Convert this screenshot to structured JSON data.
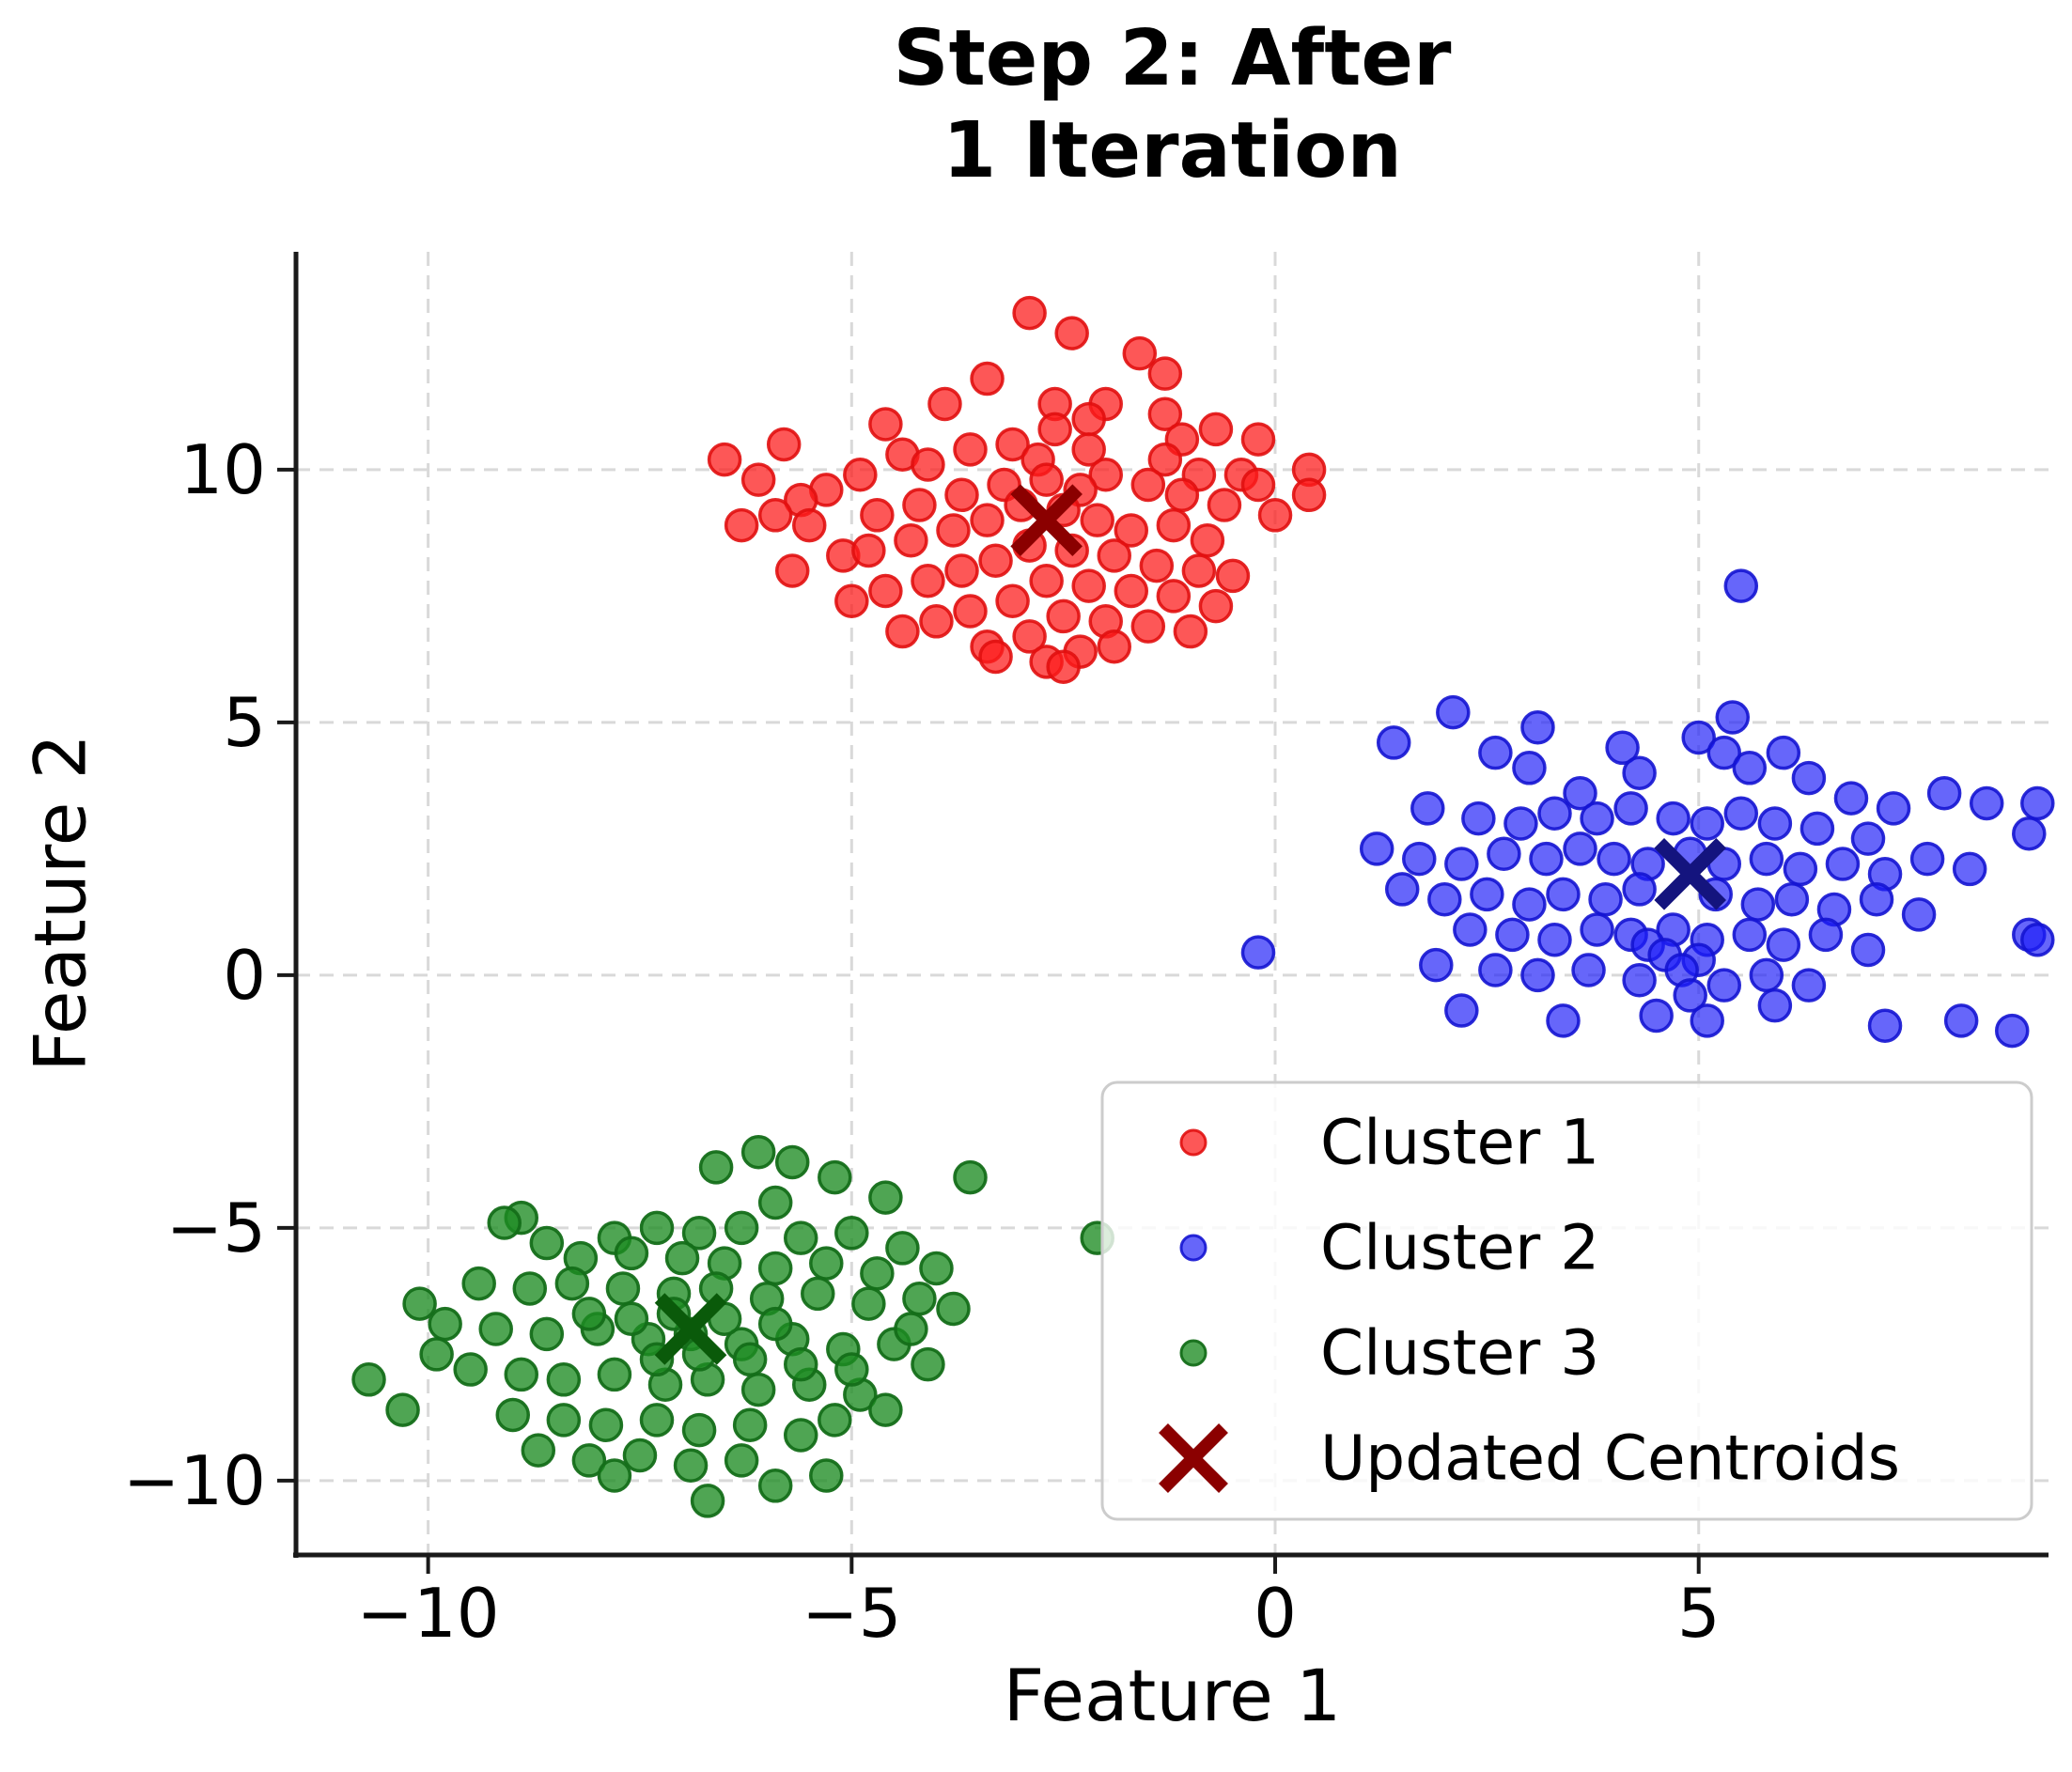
{
  "chart_data": {
    "type": "scatter",
    "title": "Step 2: After\n1 Iteration",
    "xlabel": "Feature 1",
    "ylabel": "Feature 2",
    "xlim": [
      -11.56,
      9.13
    ],
    "ylim": [
      -11.47,
      14.31
    ],
    "xticks": [
      -10,
      -5,
      0,
      5
    ],
    "xtick_labels": [
      "−10",
      "−5",
      "0",
      "5"
    ],
    "yticks": [
      10,
      5,
      0,
      -5,
      -10
    ],
    "ytick_labels": [
      "10",
      "5",
      "0",
      "−5",
      "−10"
    ],
    "grid": true,
    "grid_color": "#D9D9D9",
    "spine_color": "#1a1a1a",
    "legend_position": "lower right",
    "legend_border_color": "#CCCCCC",
    "series": [
      {
        "name": "Cluster 1",
        "marker": "dot",
        "fill": "rgba(252,28,28,0.74)",
        "stroke": "rgba(225,15,15,0.9)",
        "legend_color": "#F8504E",
        "points": [
          [
            -2.9,
            13.1
          ],
          [
            -2.4,
            12.7
          ],
          [
            -1.6,
            12.3
          ],
          [
            -1.3,
            11.9
          ],
          [
            -3.4,
            11.8
          ],
          [
            -3.9,
            11.3
          ],
          [
            -2.6,
            11.3
          ],
          [
            -2.0,
            11.3
          ],
          [
            -1.3,
            11.1
          ],
          [
            -2.2,
            11.0
          ],
          [
            -4.6,
            10.9
          ],
          [
            -0.7,
            10.8
          ],
          [
            -2.6,
            10.8
          ],
          [
            -5.8,
            10.5
          ],
          [
            -3.6,
            10.4
          ],
          [
            -2.2,
            10.4
          ],
          [
            -1.1,
            10.6
          ],
          [
            -0.2,
            10.6
          ],
          [
            -6.5,
            10.2
          ],
          [
            -4.4,
            10.3
          ],
          [
            -3.1,
            10.5
          ],
          [
            -2.8,
            10.2
          ],
          [
            -1.3,
            10.2
          ],
          [
            -4.1,
            10.1
          ],
          [
            -2.0,
            9.9
          ],
          [
            -4.9,
            9.9
          ],
          [
            -0.9,
            9.9
          ],
          [
            -0.4,
            9.9
          ],
          [
            0.4,
            10.0
          ],
          [
            -6.1,
            9.8
          ],
          [
            -2.7,
            9.8
          ],
          [
            -3.2,
            9.7
          ],
          [
            -1.5,
            9.7
          ],
          [
            -0.2,
            9.7
          ],
          [
            -5.3,
            9.6
          ],
          [
            -2.3,
            9.6
          ],
          [
            -3.7,
            9.5
          ],
          [
            0.4,
            9.5
          ],
          [
            -5.6,
            9.4
          ],
          [
            -1.1,
            9.5
          ],
          [
            -3.0,
            9.3
          ],
          [
            -0.6,
            9.3
          ],
          [
            -4.2,
            9.3
          ],
          [
            -2.5,
            9.2
          ],
          [
            -5.9,
            9.1
          ],
          [
            -4.7,
            9.1
          ],
          [
            0.0,
            9.1
          ],
          [
            -2.1,
            9.0
          ],
          [
            -3.4,
            9.0
          ],
          [
            -6.3,
            8.9
          ],
          [
            -1.7,
            8.8
          ],
          [
            -3.8,
            8.8
          ],
          [
            -5.5,
            8.9
          ],
          [
            -1.2,
            8.9
          ],
          [
            -0.8,
            8.6
          ],
          [
            -4.3,
            8.6
          ],
          [
            -2.9,
            8.5
          ],
          [
            -2.4,
            8.4
          ],
          [
            -5.1,
            8.3
          ],
          [
            -1.9,
            8.3
          ],
          [
            -3.3,
            8.2
          ],
          [
            -1.4,
            8.1
          ],
          [
            -4.8,
            8.4
          ],
          [
            -0.9,
            8.0
          ],
          [
            -3.7,
            8.0
          ],
          [
            -5.7,
            8.0
          ],
          [
            -0.5,
            7.9
          ],
          [
            -2.2,
            7.7
          ],
          [
            -2.7,
            7.8
          ],
          [
            -4.1,
            7.8
          ],
          [
            -1.7,
            7.6
          ],
          [
            -4.6,
            7.6
          ],
          [
            -3.1,
            7.4
          ],
          [
            -1.2,
            7.5
          ],
          [
            -5.0,
            7.4
          ],
          [
            -3.6,
            7.2
          ],
          [
            -0.7,
            7.3
          ],
          [
            -2.5,
            7.1
          ],
          [
            -4.0,
            7.0
          ],
          [
            -2.0,
            7.0
          ],
          [
            -1.5,
            6.9
          ],
          [
            -4.4,
            6.8
          ],
          [
            -2.9,
            6.7
          ],
          [
            -3.4,
            6.5
          ],
          [
            -1.9,
            6.5
          ],
          [
            -2.3,
            6.4
          ],
          [
            -3.3,
            6.3
          ],
          [
            -2.7,
            6.2
          ],
          [
            -2.5,
            6.1
          ],
          [
            -1.0,
            6.8
          ]
        ]
      },
      {
        "name": "Cluster 2",
        "marker": "dot",
        "fill": "rgba(30,30,248,0.68)",
        "stroke": "rgba(20,20,210,0.9)",
        "legend_color": "#5A5AF5",
        "points": [
          [
            5.5,
            7.7
          ],
          [
            2.1,
            5.2
          ],
          [
            5.4,
            5.1
          ],
          [
            3.1,
            4.9
          ],
          [
            5.0,
            4.7
          ],
          [
            1.4,
            4.6
          ],
          [
            2.6,
            4.4
          ],
          [
            5.3,
            4.4
          ],
          [
            6.0,
            4.4
          ],
          [
            4.1,
            4.5
          ],
          [
            5.6,
            4.1
          ],
          [
            3.0,
            4.1
          ],
          [
            4.3,
            4.0
          ],
          [
            6.3,
            3.9
          ],
          [
            7.9,
            3.6
          ],
          [
            3.6,
            3.6
          ],
          [
            6.8,
            3.5
          ],
          [
            8.4,
            3.4
          ],
          [
            1.8,
            3.3
          ],
          [
            4.2,
            3.3
          ],
          [
            5.5,
            3.2
          ],
          [
            3.3,
            3.2
          ],
          [
            7.3,
            3.3
          ],
          [
            9.0,
            3.4
          ],
          [
            2.4,
            3.1
          ],
          [
            3.8,
            3.1
          ],
          [
            4.7,
            3.1
          ],
          [
            2.9,
            3.0
          ],
          [
            5.1,
            3.0
          ],
          [
            5.9,
            3.0
          ],
          [
            8.9,
            2.8
          ],
          [
            6.4,
            2.9
          ],
          [
            7.0,
            2.7
          ],
          [
            1.2,
            2.5
          ],
          [
            2.7,
            2.4
          ],
          [
            3.6,
            2.5
          ],
          [
            4.9,
            2.4
          ],
          [
            1.7,
            2.3
          ],
          [
            3.2,
            2.3
          ],
          [
            4.0,
            2.3
          ],
          [
            5.8,
            2.3
          ],
          [
            7.7,
            2.3
          ],
          [
            2.2,
            2.2
          ],
          [
            4.4,
            2.2
          ],
          [
            5.3,
            2.2
          ],
          [
            6.2,
            2.1
          ],
          [
            8.2,
            2.1
          ],
          [
            6.7,
            2.2
          ],
          [
            7.2,
            2.0
          ],
          [
            1.5,
            1.7
          ],
          [
            4.3,
            1.7
          ],
          [
            2.5,
            1.6
          ],
          [
            3.4,
            1.6
          ],
          [
            5.2,
            1.6
          ],
          [
            2.0,
            1.5
          ],
          [
            3.9,
            1.5
          ],
          [
            6.1,
            1.5
          ],
          [
            7.1,
            1.5
          ],
          [
            3.0,
            1.4
          ],
          [
            5.7,
            1.4
          ],
          [
            6.6,
            1.3
          ],
          [
            7.6,
            1.2
          ],
          [
            2.3,
            0.9
          ],
          [
            3.8,
            0.9
          ],
          [
            4.7,
            0.9
          ],
          [
            2.8,
            0.8
          ],
          [
            4.2,
            0.8
          ],
          [
            5.6,
            0.8
          ],
          [
            6.5,
            0.8
          ],
          [
            8.9,
            0.8
          ],
          [
            3.3,
            0.7
          ],
          [
            5.1,
            0.7
          ],
          [
            9.0,
            0.7
          ],
          [
            6.0,
            0.6
          ],
          [
            4.4,
            0.6
          ],
          [
            7.0,
            0.5
          ],
          [
            -0.2,
            0.45
          ],
          [
            4.6,
            0.4
          ],
          [
            5.0,
            0.3
          ],
          [
            1.9,
            0.2
          ],
          [
            2.6,
            0.1
          ],
          [
            3.7,
            0.1
          ],
          [
            4.8,
            0.1
          ],
          [
            3.1,
            0.0
          ],
          [
            5.8,
            0.0
          ],
          [
            4.3,
            -0.1
          ],
          [
            5.3,
            -0.2
          ],
          [
            6.3,
            -0.2
          ],
          [
            4.9,
            -0.4
          ],
          [
            5.9,
            -0.6
          ],
          [
            2.2,
            -0.7
          ],
          [
            3.4,
            -0.9
          ],
          [
            4.5,
            -0.8
          ],
          [
            5.1,
            -0.9
          ],
          [
            7.2,
            -1.0
          ],
          [
            8.1,
            -0.9
          ],
          [
            8.7,
            -1.1
          ]
        ]
      },
      {
        "name": "Cluster 3",
        "marker": "dot",
        "fill": "rgba(30,140,35,0.78)",
        "stroke": "rgba(20,110,25,0.95)",
        "legend_color": "#4E9F50",
        "points": [
          [
            -6.1,
            -3.5
          ],
          [
            -5.7,
            -3.7
          ],
          [
            -6.6,
            -3.8
          ],
          [
            -5.2,
            -4.0
          ],
          [
            -3.6,
            -4.0
          ],
          [
            -4.6,
            -4.4
          ],
          [
            -5.9,
            -4.5
          ],
          [
            -8.9,
            -4.8
          ],
          [
            -9.1,
            -4.9
          ],
          [
            -7.8,
            -5.2
          ],
          [
            -2.1,
            -5.2
          ],
          [
            -7.3,
            -5.0
          ],
          [
            -6.8,
            -5.1
          ],
          [
            -6.3,
            -5.0
          ],
          [
            -5.6,
            -5.2
          ],
          [
            -5.0,
            -5.1
          ],
          [
            -8.6,
            -5.3
          ],
          [
            -4.4,
            -5.4
          ],
          [
            -8.2,
            -5.6
          ],
          [
            -7.6,
            -5.5
          ],
          [
            -7.0,
            -5.6
          ],
          [
            -6.5,
            -5.7
          ],
          [
            -5.9,
            -5.8
          ],
          [
            -5.3,
            -5.7
          ],
          [
            -4.7,
            -5.9
          ],
          [
            -4.0,
            -5.8
          ],
          [
            -9.4,
            -6.1
          ],
          [
            -8.8,
            -6.2
          ],
          [
            -8.3,
            -6.1
          ],
          [
            -7.7,
            -6.2
          ],
          [
            -7.1,
            -6.3
          ],
          [
            -6.6,
            -6.2
          ],
          [
            -6.0,
            -6.4
          ],
          [
            -5.4,
            -6.3
          ],
          [
            -4.8,
            -6.5
          ],
          [
            -4.2,
            -6.4
          ],
          [
            -3.8,
            -6.6
          ],
          [
            -9.8,
            -6.9
          ],
          [
            -9.2,
            -7.0
          ],
          [
            -8.6,
            -7.1
          ],
          [
            -8.0,
            -7.0
          ],
          [
            -7.4,
            -7.2
          ],
          [
            -6.9,
            -7.1
          ],
          [
            -6.3,
            -7.3
          ],
          [
            -5.7,
            -7.2
          ],
          [
            -5.1,
            -7.4
          ],
          [
            -4.5,
            -7.3
          ],
          [
            -8.1,
            -6.7
          ],
          [
            -7.6,
            -6.8
          ],
          [
            -7.1,
            -6.7
          ],
          [
            -6.5,
            -6.8
          ],
          [
            -5.9,
            -6.9
          ],
          [
            -10.7,
            -8.0
          ],
          [
            -10.3,
            -8.6
          ],
          [
            -9.5,
            -7.8
          ],
          [
            -8.9,
            -7.9
          ],
          [
            -8.4,
            -8.0
          ],
          [
            -7.8,
            -7.9
          ],
          [
            -7.2,
            -8.1
          ],
          [
            -6.7,
            -8.0
          ],
          [
            -6.1,
            -8.2
          ],
          [
            -5.5,
            -8.1
          ],
          [
            -4.9,
            -8.3
          ],
          [
            -6.2,
            -7.6
          ],
          [
            -6.8,
            -7.5
          ],
          [
            -7.3,
            -7.6
          ],
          [
            -5.6,
            -7.7
          ],
          [
            -5.0,
            -7.8
          ],
          [
            -9.0,
            -8.7
          ],
          [
            -8.4,
            -8.8
          ],
          [
            -7.9,
            -8.9
          ],
          [
            -7.3,
            -8.8
          ],
          [
            -6.8,
            -9.0
          ],
          [
            -6.2,
            -8.9
          ],
          [
            -5.6,
            -9.1
          ],
          [
            -8.7,
            -9.4
          ],
          [
            -8.1,
            -9.6
          ],
          [
            -7.5,
            -9.5
          ],
          [
            -6.9,
            -9.7
          ],
          [
            -6.3,
            -9.6
          ],
          [
            -7.8,
            -9.9
          ],
          [
            -5.3,
            -9.9
          ],
          [
            -6.7,
            -10.4
          ],
          [
            -5.9,
            -10.1
          ],
          [
            -4.3,
            -7.0
          ],
          [
            -4.1,
            -7.7
          ],
          [
            -4.6,
            -8.6
          ],
          [
            -5.2,
            -8.8
          ],
          [
            -9.9,
            -7.5
          ],
          [
            -10.1,
            -6.5
          ]
        ]
      },
      {
        "name": "Updated Centroids",
        "marker": "x",
        "legend_color": "#8B0000",
        "point_colors": [
          "#8B0000",
          "#14147E",
          "#0A5A0A"
        ],
        "points": [
          [
            -2.7,
            9.0
          ],
          [
            4.9,
            2.0
          ],
          [
            -6.9,
            -7.0
          ]
        ]
      }
    ]
  }
}
